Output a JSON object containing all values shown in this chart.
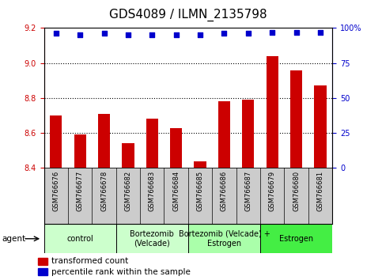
{
  "title": "GDS4089 / ILMN_2135798",
  "samples": [
    "GSM766676",
    "GSM766677",
    "GSM766678",
    "GSM766682",
    "GSM766683",
    "GSM766684",
    "GSM766685",
    "GSM766686",
    "GSM766687",
    "GSM766679",
    "GSM766680",
    "GSM766681"
  ],
  "bar_values": [
    8.7,
    8.59,
    8.71,
    8.54,
    8.68,
    8.63,
    8.44,
    8.78,
    8.79,
    9.04,
    8.96,
    8.87
  ],
  "percentile_values": [
    96,
    95,
    96,
    95,
    95,
    95,
    95,
    96,
    96,
    97,
    97,
    97
  ],
  "ylim_left": [
    8.4,
    9.2
  ],
  "ylim_right": [
    0,
    100
  ],
  "yticks_left": [
    8.4,
    8.6,
    8.8,
    9.0,
    9.2
  ],
  "yticks_right": [
    0,
    25,
    50,
    75,
    100
  ],
  "ytick_labels_right": [
    "0",
    "25",
    "50",
    "75",
    "100%"
  ],
  "bar_color": "#cc0000",
  "dot_color": "#0000cc",
  "groups": [
    {
      "label": "control",
      "start": 0,
      "end": 3,
      "color": "#ccffcc"
    },
    {
      "label": "Bortezomib\n(Velcade)",
      "start": 3,
      "end": 6,
      "color": "#ccffcc"
    },
    {
      "label": "Bortezomib (Velcade) +\nEstrogen",
      "start": 6,
      "end": 9,
      "color": "#aaffaa"
    },
    {
      "label": "Estrogen",
      "start": 9,
      "end": 12,
      "color": "#44ee44"
    }
  ],
  "agent_label": "agent",
  "legend_bar_label": "transformed count",
  "legend_dot_label": "percentile rank within the sample",
  "sample_bg_color": "#cccccc",
  "title_fontsize": 11,
  "tick_fontsize": 7,
  "sample_fontsize": 6,
  "group_fontsize": 7,
  "legend_fontsize": 7.5
}
